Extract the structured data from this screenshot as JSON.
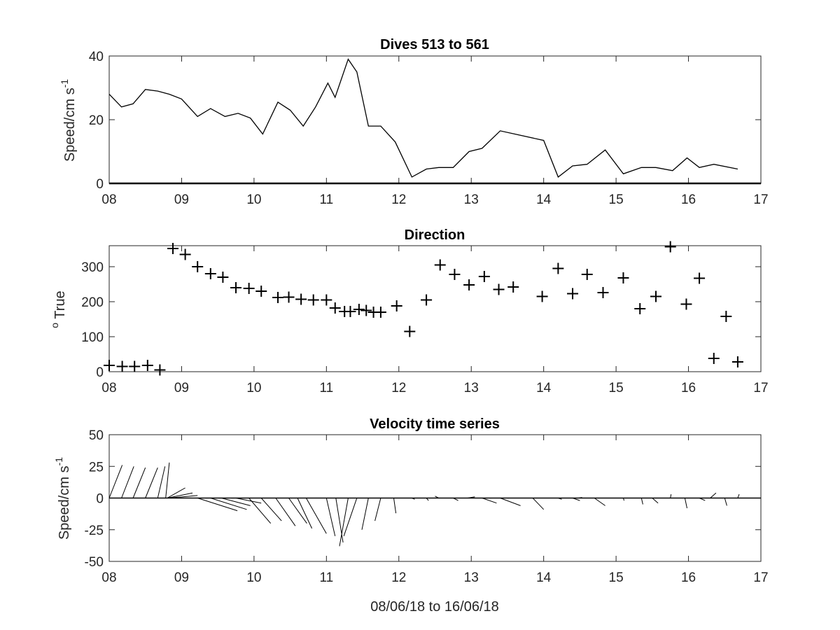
{
  "chart_data": [
    {
      "type": "line",
      "title": "Dives 513 to 561",
      "ylabel": {
        "main": "Speed/cm s",
        "sup": "-1"
      },
      "xlim": [
        8,
        17
      ],
      "ylim": [
        0,
        40
      ],
      "xticks": [
        8,
        9,
        10,
        11,
        12,
        13,
        14,
        15,
        16,
        17
      ],
      "xtick_labels": [
        "08",
        "09",
        "10",
        "11",
        "12",
        "13",
        "14",
        "15",
        "16",
        "17"
      ],
      "yticks": [
        0,
        20,
        40
      ],
      "ytick_labels": [
        "0",
        "20",
        "40"
      ],
      "grid": false,
      "series": [
        {
          "color": "#000000",
          "x": [
            8.0,
            8.17,
            8.33,
            8.5,
            8.67,
            8.83,
            9.0,
            9.22,
            9.4,
            9.6,
            9.78,
            9.95,
            10.12,
            10.33,
            10.5,
            10.68,
            10.85,
            11.02,
            11.12,
            11.3,
            11.42,
            11.58,
            11.75,
            11.95,
            12.18,
            12.38,
            12.55,
            12.75,
            12.97,
            13.15,
            13.4,
            14.0,
            14.2,
            14.4,
            14.6,
            14.85,
            15.1,
            15.35,
            15.55,
            15.78,
            15.98,
            16.15,
            16.35,
            16.68
          ],
          "y": [
            28,
            24,
            25,
            29.5,
            29,
            28,
            26.5,
            21,
            23.5,
            21,
            22,
            20.5,
            15.5,
            25.5,
            23,
            18,
            24,
            31.5,
            27,
            39,
            35,
            18,
            18,
            13,
            2,
            4.5,
            5,
            5,
            10,
            11,
            16.5,
            13.5,
            2,
            5.5,
            6,
            10.5,
            3,
            5,
            5,
            4,
            8,
            5,
            6,
            4.5
          ]
        }
      ]
    },
    {
      "type": "scatter",
      "title": "Direction",
      "ylabel": {
        "sup": "o",
        "main": " True"
      },
      "xlim": [
        8,
        17
      ],
      "ylim": [
        0,
        360
      ],
      "xticks": [
        8,
        9,
        10,
        11,
        12,
        13,
        14,
        15,
        16,
        17
      ],
      "xtick_labels": [
        "08",
        "09",
        "10",
        "11",
        "12",
        "13",
        "14",
        "15",
        "16",
        "17"
      ],
      "yticks": [
        0,
        100,
        200,
        300
      ],
      "ytick_labels": [
        "0",
        "100",
        "200",
        "300"
      ],
      "grid": false,
      "marker": "+",
      "series": [
        {
          "color": "#000000",
          "x": [
            8.0,
            8.18,
            8.35,
            8.53,
            8.7,
            8.88,
            9.05,
            9.22,
            9.4,
            9.57,
            9.75,
            9.93,
            10.1,
            10.33,
            10.48,
            10.65,
            10.82,
            11.0,
            11.12,
            11.25,
            11.33,
            11.45,
            11.55,
            11.65,
            11.75,
            11.97,
            12.15,
            12.38,
            12.57,
            12.77,
            12.97,
            13.18,
            13.38,
            13.58,
            13.98,
            14.2,
            14.4,
            14.6,
            14.82,
            15.1,
            15.33,
            15.55,
            15.75,
            15.97,
            16.15,
            16.35,
            16.52,
            16.68
          ],
          "y": [
            18,
            15,
            15,
            18,
            5,
            352,
            335,
            300,
            280,
            270,
            240,
            238,
            230,
            212,
            213,
            207,
            205,
            205,
            182,
            172,
            172,
            178,
            175,
            170,
            170,
            188,
            115,
            205,
            305,
            278,
            248,
            272,
            235,
            242,
            215,
            295,
            223,
            278,
            226,
            268,
            180,
            215,
            357,
            193,
            267,
            38,
            158,
            28
          ]
        }
      ]
    },
    {
      "type": "quiver",
      "title": "Velocity time series",
      "ylabel": {
        "main": "Speed/cm s",
        "sup": "-1"
      },
      "xlabel": "08/06/18 to 16/06/18",
      "xlim": [
        8,
        17
      ],
      "ylim": [
        -50,
        50
      ],
      "xticks": [
        8,
        9,
        10,
        11,
        12,
        13,
        14,
        15,
        16,
        17
      ],
      "xtick_labels": [
        "08",
        "09",
        "10",
        "11",
        "12",
        "13",
        "14",
        "15",
        "16",
        "17"
      ],
      "yticks": [
        -50,
        -25,
        0,
        25,
        50
      ],
      "ytick_labels": [
        "-50",
        "-25",
        "0",
        "25",
        "50"
      ],
      "grid": false,
      "zero_line": true,
      "sticks": [
        {
          "x": 8.0,
          "u": 0.18,
          "v": 26
        },
        {
          "x": 8.17,
          "u": 0.17,
          "v": 25
        },
        {
          "x": 8.33,
          "u": 0.17,
          "v": 24
        },
        {
          "x": 8.5,
          "u": 0.17,
          "v": 24
        },
        {
          "x": 8.67,
          "u": 0.1,
          "v": 25
        },
        {
          "x": 8.78,
          "u": 0.05,
          "v": 28
        },
        {
          "x": 8.8,
          "u": 0.25,
          "v": 8
        },
        {
          "x": 8.8,
          "u": 0.35,
          "v": 4
        },
        {
          "x": 8.82,
          "u": 0.4,
          "v": 2
        },
        {
          "x": 9.22,
          "u": 0.55,
          "v": -10
        },
        {
          "x": 9.4,
          "u": 0.5,
          "v": -9
        },
        {
          "x": 9.55,
          "u": 0.4,
          "v": -6
        },
        {
          "x": 9.75,
          "u": 0.35,
          "v": -4
        },
        {
          "x": 9.93,
          "u": 0.3,
          "v": -20
        },
        {
          "x": 10.1,
          "u": 0.28,
          "v": -18
        },
        {
          "x": 10.3,
          "u": 0.27,
          "v": -22
        },
        {
          "x": 10.48,
          "u": 0.25,
          "v": -20
        },
        {
          "x": 10.6,
          "u": 0.2,
          "v": -24
        },
        {
          "x": 10.72,
          "u": 0.28,
          "v": -28
        },
        {
          "x": 11.0,
          "u": 0.12,
          "v": -30
        },
        {
          "x": 11.13,
          "u": 0.1,
          "v": -35
        },
        {
          "x": 11.3,
          "u": -0.12,
          "v": -38
        },
        {
          "x": 11.42,
          "u": -0.18,
          "v": -30
        },
        {
          "x": 11.58,
          "u": -0.09,
          "v": -25
        },
        {
          "x": 11.75,
          "u": -0.08,
          "v": -18
        },
        {
          "x": 11.93,
          "u": 0.03,
          "v": -12
        },
        {
          "x": 12.18,
          "u": 0.04,
          "v": -1
        },
        {
          "x": 12.38,
          "u": 0.03,
          "v": -2
        },
        {
          "x": 12.55,
          "u": -0.05,
          "v": 1.5
        },
        {
          "x": 12.75,
          "u": 0.07,
          "v": -2
        },
        {
          "x": 12.95,
          "u": 0.1,
          "v": 1
        },
        {
          "x": 13.15,
          "u": 0.2,
          "v": -4
        },
        {
          "x": 13.4,
          "u": 0.28,
          "v": -6
        },
        {
          "x": 13.85,
          "u": 0.15,
          "v": -9
        },
        {
          "x": 14.2,
          "u": 0.05,
          "v": -1
        },
        {
          "x": 14.4,
          "u": 0.1,
          "v": -2
        },
        {
          "x": 14.48,
          "u": 0.05,
          "v": 0.5
        },
        {
          "x": 14.7,
          "u": 0.15,
          "v": -6
        },
        {
          "x": 15.1,
          "u": 0.01,
          "v": -2
        },
        {
          "x": 15.35,
          "u": 0.02,
          "v": -5
        },
        {
          "x": 15.5,
          "u": 0.08,
          "v": -4
        },
        {
          "x": 15.75,
          "u": 0.01,
          "v": 3
        },
        {
          "x": 15.95,
          "u": 0.03,
          "v": -8
        },
        {
          "x": 16.15,
          "u": 0.08,
          "v": -2
        },
        {
          "x": 16.3,
          "u": 0.08,
          "v": 4
        },
        {
          "x": 16.5,
          "u": 0.03,
          "v": -6
        },
        {
          "x": 16.68,
          "u": 0.02,
          "v": 3
        }
      ]
    }
  ]
}
